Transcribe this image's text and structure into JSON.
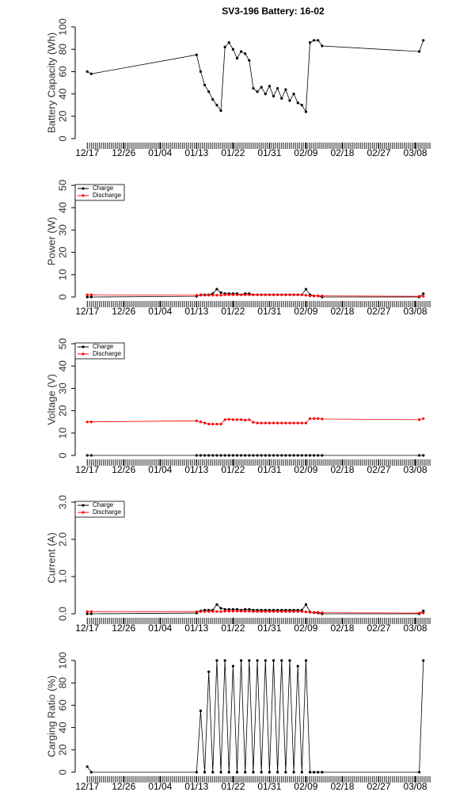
{
  "chart_data": [
    {
      "type": "line",
      "title": "SV3-196 Battery: 16-02",
      "ylabel": "Battery Capacity (Wh)",
      "x": [
        "12/17",
        "12/18",
        "01/13",
        "01/14",
        "01/15",
        "01/16",
        "01/17",
        "01/18",
        "01/19",
        "01/20",
        "01/21",
        "01/22",
        "01/23",
        "01/24",
        "01/25",
        "01/26",
        "01/27",
        "01/28",
        "01/29",
        "01/30",
        "01/31",
        "02/01",
        "02/02",
        "02/03",
        "02/04",
        "02/05",
        "02/06",
        "02/07",
        "02/08",
        "02/09",
        "02/10",
        "02/11",
        "02/12",
        "02/13",
        "03/09",
        "03/10"
      ],
      "series": [
        {
          "color": "#000000",
          "values": [
            60,
            58,
            75,
            60,
            48,
            42,
            35,
            30,
            25,
            82,
            86,
            80,
            72,
            78,
            76,
            70,
            45,
            42,
            46,
            40,
            47,
            38,
            45,
            36,
            44,
            34,
            40,
            32,
            30,
            24,
            86,
            88,
            88,
            83,
            78,
            88
          ]
        }
      ],
      "xlim": [
        "12/15",
        "03/12"
      ],
      "xticks": [
        "12/17",
        "12/26",
        "01/04",
        "01/13",
        "01/22",
        "01/31",
        "02/09",
        "02/18",
        "02/27",
        "03/08"
      ],
      "ylim": [
        0,
        100
      ],
      "yticks": [
        0,
        20,
        40,
        60,
        80,
        100
      ]
    },
    {
      "type": "line",
      "ylabel": "Power (W)",
      "x": [
        "12/17",
        "12/18",
        "01/13",
        "01/14",
        "01/15",
        "01/16",
        "01/17",
        "01/18",
        "01/19",
        "01/20",
        "01/21",
        "01/22",
        "01/23",
        "01/24",
        "01/25",
        "01/26",
        "01/27",
        "01/28",
        "01/29",
        "01/30",
        "01/31",
        "02/01",
        "02/02",
        "02/03",
        "02/04",
        "02/05",
        "02/06",
        "02/07",
        "02/08",
        "02/09",
        "02/10",
        "02/11",
        "02/12",
        "02/13",
        "03/09",
        "03/10"
      ],
      "series": [
        {
          "name": "Charge",
          "color": "#000000",
          "values": [
            0,
            0,
            0.3,
            1,
            1,
            1,
            1.5,
            3.5,
            2,
            1.5,
            1.5,
            1.5,
            1.5,
            1,
            1.5,
            1.5,
            1,
            1,
            1,
            1,
            1,
            1,
            1,
            1,
            1,
            1,
            1,
            1,
            1,
            3.5,
            1,
            0.5,
            0.5,
            0,
            0,
            1.5
          ]
        },
        {
          "name": "Discharge",
          "color": "#ff0000",
          "values": [
            1,
            1,
            0.8,
            0.8,
            0.8,
            0.8,
            0.8,
            0.8,
            0.8,
            1,
            1,
            1,
            1,
            1,
            1,
            1,
            1,
            1,
            1,
            1,
            1,
            1,
            1,
            1,
            1,
            1,
            1,
            1,
            1,
            0.8,
            0.5,
            0.5,
            0.5,
            0.5,
            0.3,
            0.3
          ]
        }
      ],
      "xlim": [
        "12/15",
        "03/12"
      ],
      "xticks": [
        "12/17",
        "12/26",
        "01/04",
        "01/13",
        "01/22",
        "01/31",
        "02/09",
        "02/18",
        "02/27",
        "03/08"
      ],
      "ylim": [
        0,
        50
      ],
      "yticks": [
        0,
        10,
        20,
        30,
        40,
        50
      ],
      "legend": "topleft"
    },
    {
      "type": "line",
      "ylabel": "Voltage (V)",
      "x": [
        "12/17",
        "12/18",
        "01/13",
        "01/14",
        "01/15",
        "01/16",
        "01/17",
        "01/18",
        "01/19",
        "01/20",
        "01/21",
        "01/22",
        "01/23",
        "01/24",
        "01/25",
        "01/26",
        "01/27",
        "01/28",
        "01/29",
        "01/30",
        "01/31",
        "02/01",
        "02/02",
        "02/03",
        "02/04",
        "02/05",
        "02/06",
        "02/07",
        "02/08",
        "02/09",
        "02/10",
        "02/11",
        "02/12",
        "02/13",
        "03/09",
        "03/10"
      ],
      "series": [
        {
          "name": "Charge",
          "color": "#000000",
          "values": [
            0,
            0,
            0,
            0,
            0,
            0,
            0,
            0,
            0,
            0,
            0,
            0,
            0,
            0,
            0,
            0,
            0,
            0,
            0,
            0,
            0,
            0,
            0,
            0,
            0,
            0,
            0,
            0,
            0,
            0,
            0,
            0,
            0,
            0,
            0,
            0
          ]
        },
        {
          "name": "Discharge",
          "color": "#ff0000",
          "values": [
            15,
            15,
            15.5,
            15,
            14.5,
            14,
            14,
            14,
            14,
            16,
            16.2,
            16,
            16,
            16,
            15.8,
            16,
            14.8,
            14.5,
            14.5,
            14.5,
            14.5,
            14.5,
            14.5,
            14.5,
            14.5,
            14.5,
            14.5,
            14.5,
            14.5,
            14.5,
            16.5,
            16.5,
            16.5,
            16.3,
            16,
            16.5
          ]
        }
      ],
      "xlim": [
        "12/15",
        "03/12"
      ],
      "xticks": [
        "12/17",
        "12/26",
        "01/04",
        "01/13",
        "01/22",
        "01/31",
        "02/09",
        "02/18",
        "02/27",
        "03/08"
      ],
      "ylim": [
        0,
        50
      ],
      "yticks": [
        0,
        10,
        20,
        30,
        40,
        50
      ],
      "legend": "topleft"
    },
    {
      "type": "line",
      "ylabel": "Current (A)",
      "x": [
        "12/17",
        "12/18",
        "01/13",
        "01/14",
        "01/15",
        "01/16",
        "01/17",
        "01/18",
        "01/19",
        "01/20",
        "01/21",
        "01/22",
        "01/23",
        "01/24",
        "01/25",
        "01/26",
        "01/27",
        "01/28",
        "01/29",
        "01/30",
        "01/31",
        "02/01",
        "02/02",
        "02/03",
        "02/04",
        "02/05",
        "02/06",
        "02/07",
        "02/08",
        "02/09",
        "02/10",
        "02/11",
        "02/12",
        "02/13",
        "03/09",
        "03/10"
      ],
      "series": [
        {
          "name": "Charge",
          "color": "#000000",
          "values": [
            0,
            0,
            0.02,
            0.08,
            0.1,
            0.1,
            0.1,
            0.25,
            0.15,
            0.12,
            0.12,
            0.12,
            0.12,
            0.1,
            0.12,
            0.12,
            0.1,
            0.1,
            0.1,
            0.1,
            0.1,
            0.1,
            0.1,
            0.1,
            0.1,
            0.1,
            0.1,
            0.1,
            0.1,
            0.25,
            0.05,
            0.03,
            0.02,
            0,
            0,
            0.08
          ]
        },
        {
          "name": "Discharge",
          "color": "#ff0000",
          "values": [
            0.06,
            0.06,
            0.06,
            0.06,
            0.06,
            0.06,
            0.06,
            0.06,
            0.06,
            0.07,
            0.07,
            0.07,
            0.07,
            0.07,
            0.07,
            0.07,
            0.06,
            0.06,
            0.06,
            0.06,
            0.06,
            0.06,
            0.06,
            0.06,
            0.06,
            0.06,
            0.06,
            0.06,
            0.06,
            0.05,
            0.04,
            0.04,
            0.04,
            0.03,
            0.02,
            0.02
          ]
        }
      ],
      "xlim": [
        "12/15",
        "03/12"
      ],
      "xticks": [
        "12/17",
        "12/26",
        "01/04",
        "01/13",
        "01/22",
        "01/31",
        "02/09",
        "02/18",
        "02/27",
        "03/08"
      ],
      "ylim": [
        0,
        3
      ],
      "yticks": [
        {
          "value": 0,
          "label": "0.0"
        },
        {
          "value": 1,
          "label": "1.0"
        },
        {
          "value": 2,
          "label": "2.0"
        },
        {
          "value": 3,
          "label": "3.0"
        }
      ],
      "legend": "topleft"
    },
    {
      "type": "line",
      "ylabel": "Carging Ratio (%)",
      "x": [
        "12/17",
        "12/18",
        "01/13",
        "01/14",
        "01/15",
        "01/16",
        "01/17",
        "01/18",
        "01/19",
        "01/20",
        "01/21",
        "01/22",
        "01/23",
        "01/24",
        "01/25",
        "01/26",
        "01/27",
        "01/28",
        "01/29",
        "01/30",
        "01/31",
        "02/01",
        "02/02",
        "02/03",
        "02/04",
        "02/05",
        "02/06",
        "02/07",
        "02/08",
        "02/09",
        "02/10",
        "02/11",
        "02/12",
        "02/13",
        "03/09",
        "03/10"
      ],
      "series": [
        {
          "color": "#000000",
          "values": [
            5,
            0,
            0,
            55,
            0,
            90,
            0,
            100,
            0,
            100,
            0,
            95,
            0,
            100,
            0,
            100,
            0,
            100,
            0,
            100,
            0,
            100,
            0,
            100,
            0,
            100,
            0,
            95,
            0,
            100,
            0,
            0,
            0,
            0,
            0,
            100
          ]
        }
      ],
      "xlim": [
        "12/15",
        "03/12"
      ],
      "xticks": [
        "12/17",
        "12/26",
        "01/04",
        "01/13",
        "01/22",
        "01/31",
        "02/09",
        "02/18",
        "02/27",
        "03/08"
      ],
      "ylim": [
        0,
        100
      ],
      "yticks": [
        0,
        20,
        40,
        60,
        80,
        100
      ]
    }
  ]
}
